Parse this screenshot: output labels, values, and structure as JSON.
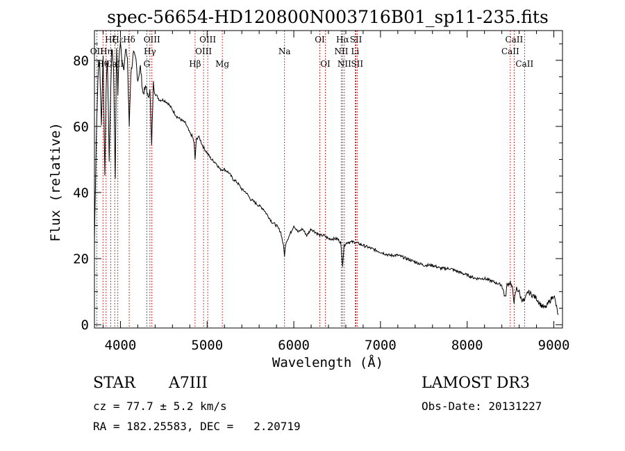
{
  "chart_data": {
    "type": "line",
    "title": "spec-56654-HD120800N003716B01_sp11-235.fits",
    "xlabel": "Wavelength (Å)",
    "ylabel": "Flux (relative)",
    "xlim": [
      3700,
      9100
    ],
    "ylim": [
      -1,
      89
    ],
    "xticks": [
      4000,
      5000,
      6000,
      7000,
      8000,
      9000
    ],
    "yticks": [
      0,
      20,
      40,
      60,
      80
    ],
    "grid": false,
    "series": [
      {
        "name": "flux",
        "x": [
          3700,
          3720,
          3740,
          3760,
          3780,
          3800,
          3820,
          3835,
          3850,
          3870,
          3889,
          3900,
          3920,
          3940,
          3955,
          3970,
          3985,
          4000,
          4020,
          4040,
          4060,
          4080,
          4101,
          4120,
          4150,
          4180,
          4200,
          4230,
          4260,
          4300,
          4320,
          4340,
          4360,
          4380,
          4400,
          4450,
          4500,
          4550,
          4600,
          4650,
          4700,
          4750,
          4800,
          4830,
          4850,
          4861,
          4875,
          4900,
          4920,
          4950,
          5000,
          5050,
          5100,
          5150,
          5200,
          5250,
          5300,
          5350,
          5400,
          5450,
          5500,
          5550,
          5600,
          5650,
          5700,
          5750,
          5800,
          5850,
          5880,
          5893,
          5910,
          5950,
          6000,
          6050,
          6100,
          6150,
          6200,
          6250,
          6300,
          6350,
          6400,
          6450,
          6500,
          6540,
          6563,
          6580,
          6620,
          6700,
          6800,
          6900,
          7000,
          7100,
          7200,
          7300,
          7400,
          7500,
          7600,
          7700,
          7800,
          7900,
          8000,
          8100,
          8200,
          8300,
          8400,
          8440,
          8460,
          8498,
          8520,
          8542,
          8570,
          8600,
          8620,
          8662,
          8700,
          8750,
          8800,
          8850,
          8900,
          8950,
          9000,
          9050
        ],
        "values": [
          25,
          55,
          75,
          80,
          60,
          82,
          45,
          72,
          80,
          50,
          72,
          84,
          78,
          45,
          84,
          70,
          82,
          85,
          80,
          78,
          83,
          81,
          60,
          76,
          82,
          80,
          74,
          78,
          70,
          72,
          68,
          72,
          54,
          73,
          70,
          68,
          68,
          67,
          65,
          63,
          62,
          61,
          58,
          57,
          55,
          50,
          56,
          57,
          56,
          54,
          52,
          50,
          49,
          47,
          47,
          46,
          44,
          43,
          41,
          40,
          38,
          37,
          36,
          35,
          33,
          31,
          30,
          28,
          24,
          21,
          25,
          27,
          30,
          28,
          29,
          27,
          29,
          28,
          27,
          27,
          26,
          26,
          26,
          25,
          18,
          24,
          25,
          25,
          24,
          23,
          22,
          21,
          21,
          20,
          19,
          18,
          18,
          17,
          17,
          16,
          15,
          14,
          14,
          13,
          12,
          8,
          12,
          13,
          11,
          7,
          11,
          10,
          8,
          7,
          10,
          9,
          8,
          6,
          5,
          7,
          9,
          3
        ]
      }
    ],
    "spectral_lines": [
      {
        "label": "Hε",
        "wavelength": 3970,
        "row": 1
      },
      {
        "label": "Hζ",
        "wavelength": 3889,
        "row": 1
      },
      {
        "label": "OII",
        "wavelength": 3727,
        "row": 2
      },
      {
        "label": "Hη",
        "wavelength": 3835,
        "row": 2
      },
      {
        "label": "Hθ",
        "wavelength": 3798,
        "row": 3
      },
      {
        "label": "CaII",
        "wavelength": 3934,
        "row": 3
      },
      {
        "label": "Hδ",
        "wavelength": 4101,
        "row": 1
      },
      {
        "label": "OIII",
        "wavelength": 4363,
        "row": 1
      },
      {
        "label": "Hγ",
        "wavelength": 4340,
        "row": 2
      },
      {
        "label": "G",
        "wavelength": 4304,
        "row": 3
      },
      {
        "label": "OIII",
        "wavelength": 5007,
        "row": 1
      },
      {
        "label": "OIII",
        "wavelength": 4959,
        "row": 2
      },
      {
        "label": "Hβ",
        "wavelength": 4861,
        "row": 3
      },
      {
        "label": "Mg",
        "wavelength": 5175,
        "row": 3
      },
      {
        "label": "Na",
        "wavelength": 5893,
        "row": 2
      },
      {
        "label": "OI",
        "wavelength": 6300,
        "row": 1
      },
      {
        "label": "OI",
        "wavelength": 6364,
        "row": 3
      },
      {
        "label": "Hα",
        "wavelength": 6563,
        "row": 1
      },
      {
        "label": "SII",
        "wavelength": 6717,
        "row": 1
      },
      {
        "label": "NII",
        "wavelength": 6548,
        "row": 2
      },
      {
        "label": "Li",
        "wavelength": 6708,
        "row": 2
      },
      {
        "label": "NII",
        "wavelength": 6583,
        "row": 3
      },
      {
        "label": "SII",
        "wavelength": 6731,
        "row": 3
      },
      {
        "label": "CaII",
        "wavelength": 8542,
        "row": 1
      },
      {
        "label": "CaII",
        "wavelength": 8498,
        "row": 2
      },
      {
        "label": "CaII",
        "wavelength": 8662,
        "row": 3
      }
    ]
  },
  "info": {
    "object_class": "STAR",
    "subclass": "A7III",
    "survey": "LAMOST DR3",
    "redshift": "cz = 77.7 ± 5.2 km/s",
    "obs_date": "Obs-Date: 20131227",
    "coords": "RA = 182.25583, DEC =   2.20719"
  },
  "colors": {
    "line_marker": "#c00000",
    "spectrum": "#000000",
    "text": "#000000"
  }
}
